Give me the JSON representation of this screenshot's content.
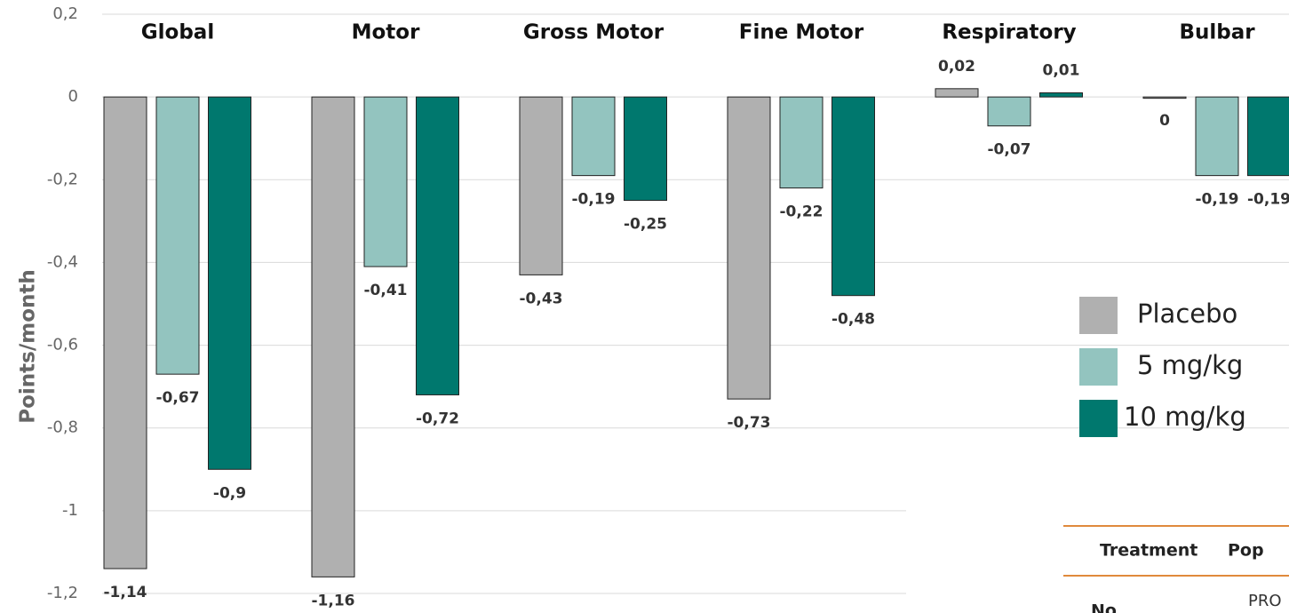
{
  "chart_data": {
    "type": "bar",
    "y_label": "Points/month",
    "categories": [
      "Global",
      "Motor",
      "Gross Motor",
      "Fine Motor",
      "Respiratory",
      "Bulbar"
    ],
    "series": [
      {
        "name": "Placebo",
        "color": "#b0b0b0",
        "values": [
          -1.14,
          -1.16,
          -0.43,
          -0.73,
          0.02,
          0
        ],
        "value_labels": [
          "-1,14",
          "-1,16",
          "-0,43",
          "-0,73",
          "0,02",
          "0"
        ]
      },
      {
        "name": "5 mg/kg",
        "color": "#93c4bf",
        "values": [
          -0.67,
          -0.41,
          -0.19,
          -0.22,
          -0.07,
          -0.19
        ],
        "value_labels": [
          "-0,67",
          "-0,41",
          "-0,19",
          "-0,22",
          "-0,07",
          "-0,19"
        ]
      },
      {
        "name": "10 mg/kg",
        "color": "#00786e",
        "values": [
          -0.9,
          -0.72,
          -0.25,
          -0.48,
          0.01,
          -0.19
        ],
        "value_labels": [
          "-0,9",
          "-0,72",
          "-0,25",
          "-0,48",
          "0,01",
          "-0,19"
        ]
      }
    ],
    "ylim": [
      -1.2,
      0.2
    ],
    "yticks": [
      {
        "value": 0.2,
        "label": "0,2"
      },
      0,
      {
        "value": -0.2,
        "label": "-0,2"
      },
      {
        "value": -0.4,
        "label": "-0,4"
      },
      {
        "value": -0.6,
        "label": "-0,6"
      },
      {
        "value": -0.8,
        "label": "-0,8"
      },
      -1,
      {
        "value": -1.2,
        "label": "-1,2"
      }
    ],
    "grid": true
  },
  "table": {
    "columns": [
      "Treatment",
      "Pop"
    ],
    "rows": [
      [
        "No",
        "PRO"
      ]
    ]
  }
}
